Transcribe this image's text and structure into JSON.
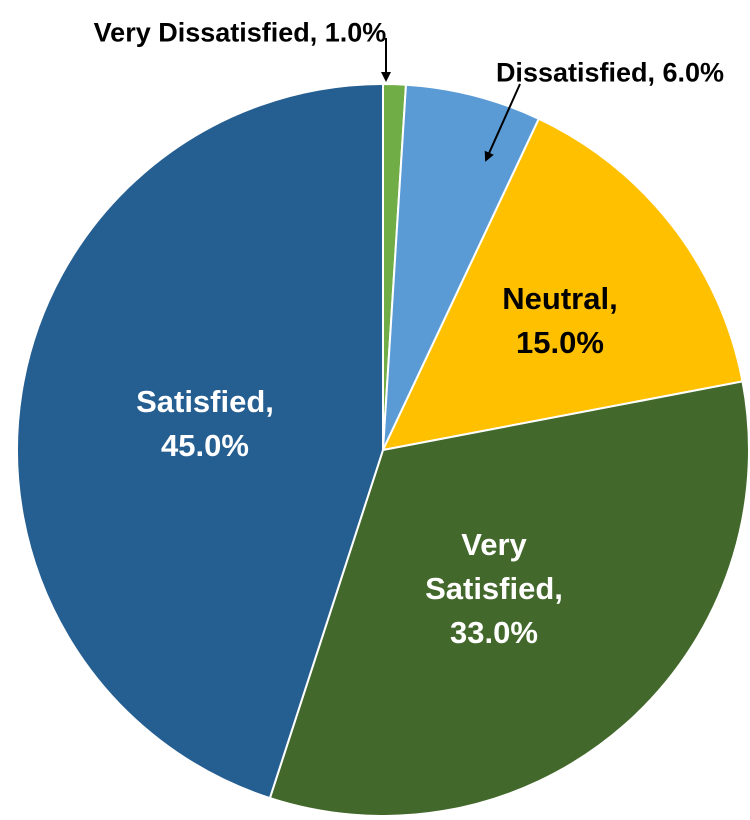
{
  "chart_data": {
    "type": "pie",
    "slices": [
      {
        "label": "Very Dissatisfied",
        "value": 1.0,
        "display": "1.0%",
        "color": "#70ad47"
      },
      {
        "label": "Dissatisfied",
        "value": 6.0,
        "display": "6.0%",
        "color": "#5b9bd5"
      },
      {
        "label": "Neutral",
        "value": 15.0,
        "display": "15.0%",
        "color": "#ffc000"
      },
      {
        "label": "Very Satisfied",
        "value": 33.0,
        "display": "33.0%",
        "color": "#43682b"
      },
      {
        "label": "Satisfied",
        "value": 45.0,
        "display": "45.0%",
        "color": "#255e91"
      }
    ],
    "data_labels": [
      {
        "lines": [
          "Very Dissatisfied, 1.0%"
        ],
        "color": "#000000",
        "outside": true
      },
      {
        "lines": [
          "Dissatisfied, 6.0%"
        ],
        "color": "#000000",
        "outside": true
      },
      {
        "lines": [
          "Neutral,",
          "15.0%"
        ],
        "color": "#000000",
        "outside": false
      },
      {
        "lines": [
          "Very",
          "Satisfied,",
          "33.0%"
        ],
        "color": "#ffffff",
        "outside": false
      },
      {
        "lines": [
          "Satisfied,",
          "45.0%"
        ],
        "color": "#ffffff",
        "outside": false
      }
    ],
    "start_angle": "12 o'clock",
    "direction": "clockwise",
    "slice_border_color": "#ffffff"
  }
}
